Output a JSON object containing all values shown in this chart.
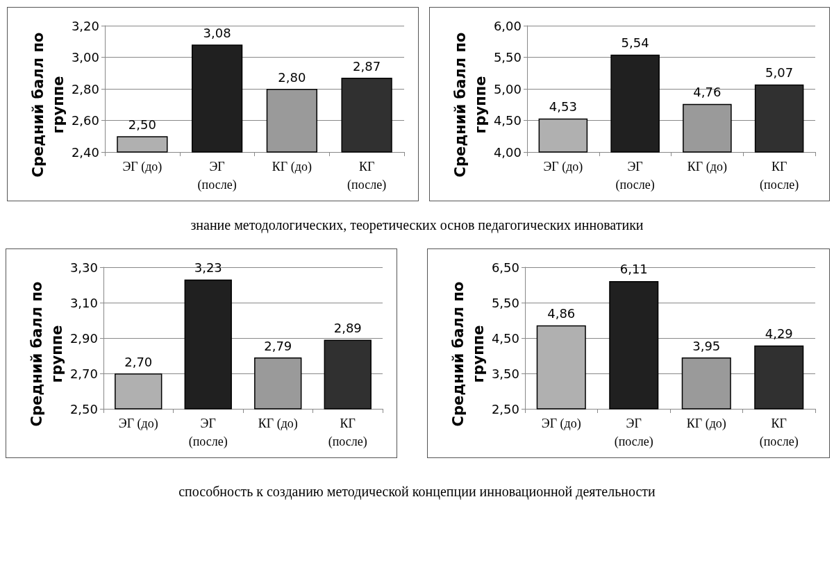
{
  "chart_data": [
    {
      "type": "bar",
      "ylabel": "Средний балл по группе",
      "categories": [
        "ЭГ (до)",
        "ЭГ (после)",
        "КГ (до)",
        "КГ (после)"
      ],
      "values": [
        2.5,
        3.08,
        2.8,
        2.87
      ],
      "colors": [
        "#b0b0b0",
        "#202020",
        "#9a9a9a",
        "#303030"
      ],
      "value_labels": [
        "2,50",
        "3,08",
        "2,80",
        "2,87"
      ],
      "ylim": [
        2.4,
        3.2
      ],
      "yticks": [
        {
          "value": 2.4,
          "label": "2,40"
        },
        {
          "value": 2.6,
          "label": "2,60"
        },
        {
          "value": 2.8,
          "label": "2,80"
        },
        {
          "value": 3.0,
          "label": "3,00"
        },
        {
          "value": 3.2,
          "label": "3,20"
        }
      ],
      "grid": "y",
      "annotations": [
        "знание методологических, теоретических основ педагогических инноватики"
      ]
    },
    {
      "type": "bar",
      "ylabel": "Средний балл по группе",
      "categories": [
        "ЭГ (до)",
        "ЭГ (после)",
        "КГ (до)",
        "КГ (после)"
      ],
      "values": [
        4.53,
        5.54,
        4.76,
        5.07
      ],
      "colors": [
        "#b0b0b0",
        "#202020",
        "#9a9a9a",
        "#303030"
      ],
      "value_labels": [
        "4,53",
        "5,54",
        "4,76",
        "5,07"
      ],
      "ylim": [
        4.0,
        6.0
      ],
      "yticks": [
        {
          "value": 4.0,
          "label": "4,00"
        },
        {
          "value": 4.5,
          "label": "4,50"
        },
        {
          "value": 5.0,
          "label": "5,00"
        },
        {
          "value": 5.5,
          "label": "5,50"
        },
        {
          "value": 6.0,
          "label": "6,00"
        }
      ],
      "grid": "y"
    },
    {
      "type": "bar",
      "ylabel": "Средний балл по группе",
      "categories": [
        "ЭГ (до)",
        "ЭГ (после)",
        "КГ (до)",
        "КГ (после)"
      ],
      "values": [
        2.7,
        3.23,
        2.79,
        2.89
      ],
      "colors": [
        "#b0b0b0",
        "#202020",
        "#9a9a9a",
        "#303030"
      ],
      "value_labels": [
        "2,70",
        "3,23",
        "2,79",
        "2,89"
      ],
      "ylim": [
        2.5,
        3.3
      ],
      "yticks": [
        {
          "value": 2.5,
          "label": "2,50"
        },
        {
          "value": 2.7,
          "label": "2,70"
        },
        {
          "value": 2.9,
          "label": "2,90"
        },
        {
          "value": 3.1,
          "label": "3,10"
        },
        {
          "value": 3.3,
          "label": "3,30"
        }
      ],
      "grid": "y",
      "annotations": [
        "способность к созданию методической концепции инновационной деятельности"
      ]
    },
    {
      "type": "bar",
      "ylabel": "Средний балл по группе",
      "categories": [
        "ЭГ (до)",
        "ЭГ (после)",
        "КГ (до)",
        "КГ (после)"
      ],
      "values": [
        4.86,
        6.11,
        3.95,
        4.29
      ],
      "colors": [
        "#b0b0b0",
        "#202020",
        "#9a9a9a",
        "#303030"
      ],
      "value_labels": [
        "4,86",
        "6,11",
        "3,95",
        "4,29"
      ],
      "ylim": [
        2.5,
        6.5
      ],
      "yticks": [
        {
          "value": 2.5,
          "label": "2,50"
        },
        {
          "value": 3.5,
          "label": "3,50"
        },
        {
          "value": 4.5,
          "label": "4,50"
        },
        {
          "value": 5.5,
          "label": "5,50"
        },
        {
          "value": 6.5,
          "label": "6,50"
        }
      ],
      "grid": "y"
    }
  ]
}
